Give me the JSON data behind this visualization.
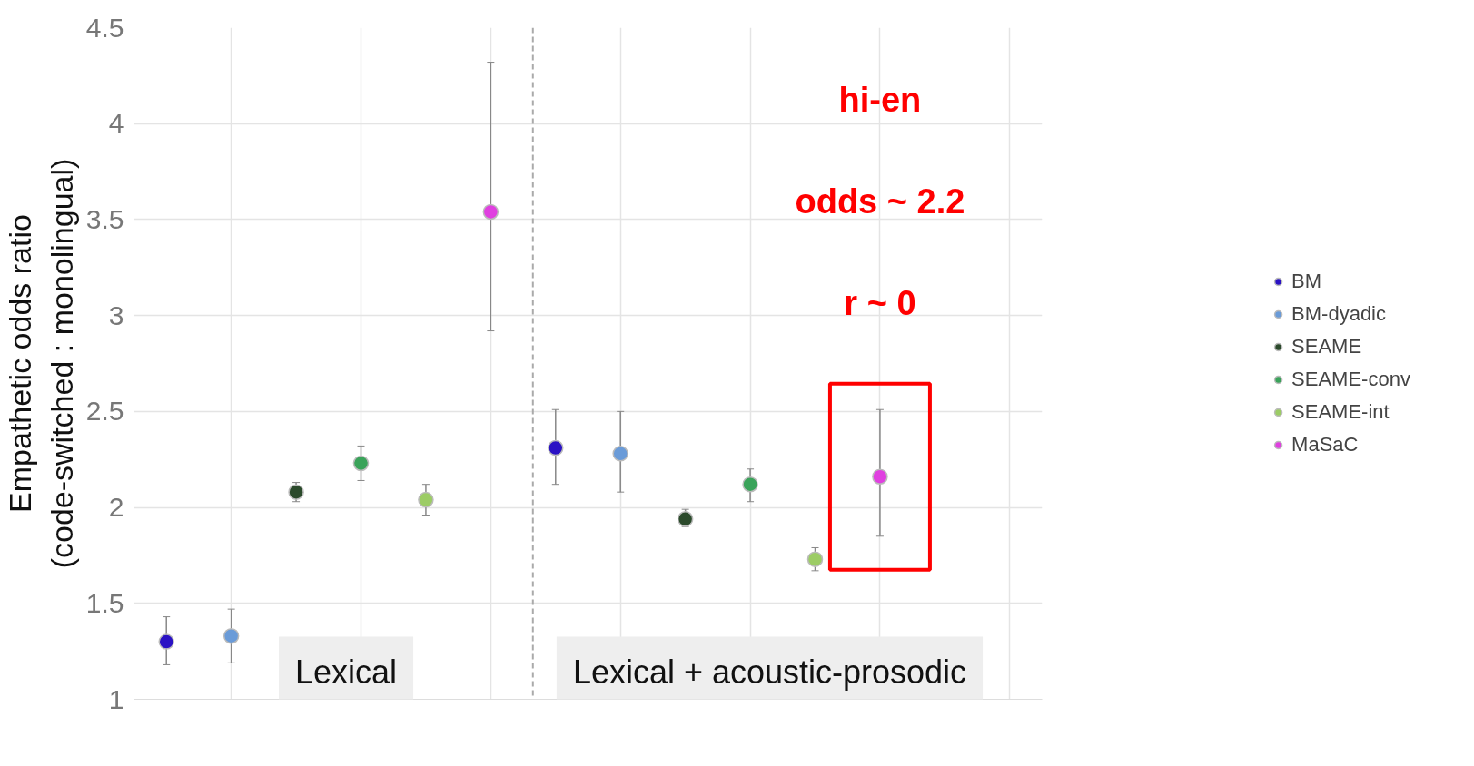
{
  "chart_data": {
    "type": "scatter",
    "ylabel": "Empathetic odds ratio\n(code-switched : monolingual)",
    "categories": [
      null,
      null,
      null,
      null,
      null,
      null,
      null,
      null,
      null,
      null,
      null,
      null,
      null,
      null
    ],
    "ylim": [
      1,
      4.5
    ],
    "yticks": [
      1,
      1.5,
      2,
      2.5,
      3,
      3.5,
      4,
      4.5
    ],
    "grid": true,
    "legend": "right",
    "marker": "circle",
    "series": [
      {
        "name": "BM",
        "color": "#2a12c4",
        "values": [
          1.3,
          null,
          null,
          null,
          null,
          null,
          2.31,
          null,
          null,
          null,
          null,
          null,
          null,
          null
        ],
        "errors": [
          [
            1.18,
            1.43
          ],
          null,
          null,
          null,
          null,
          null,
          [
            2.12,
            2.51
          ],
          null,
          null,
          null,
          null,
          null,
          null,
          null
        ]
      },
      {
        "name": "BM-dyadic",
        "color": "#6a9bd8",
        "values": [
          null,
          1.33,
          null,
          null,
          null,
          null,
          null,
          2.28,
          null,
          null,
          null,
          null,
          null,
          null
        ],
        "errors": [
          null,
          [
            1.19,
            1.47
          ],
          null,
          null,
          null,
          null,
          null,
          [
            2.08,
            2.5
          ],
          null,
          null,
          null,
          null,
          null,
          null
        ]
      },
      {
        "name": "SEAME",
        "color": "#2b4a2b",
        "values": [
          null,
          null,
          2.08,
          null,
          null,
          null,
          null,
          null,
          1.94,
          null,
          null,
          null,
          null,
          null
        ],
        "errors": [
          null,
          null,
          [
            2.03,
            2.13
          ],
          null,
          null,
          null,
          null,
          null,
          [
            1.9,
            1.99
          ],
          null,
          null,
          null,
          null,
          null
        ]
      },
      {
        "name": "SEAME-conv",
        "color": "#3aa35a",
        "values": [
          null,
          null,
          null,
          2.23,
          null,
          null,
          null,
          null,
          null,
          2.12,
          null,
          null,
          null,
          null
        ],
        "errors": [
          null,
          null,
          null,
          [
            2.14,
            2.32
          ],
          null,
          null,
          null,
          null,
          null,
          [
            2.03,
            2.2
          ],
          null,
          null,
          null,
          null
        ]
      },
      {
        "name": "SEAME-int",
        "color": "#9ccc65",
        "values": [
          null,
          null,
          null,
          null,
          2.04,
          null,
          null,
          null,
          null,
          null,
          1.73,
          null,
          null,
          null
        ],
        "errors": [
          null,
          null,
          null,
          null,
          [
            1.96,
            2.12
          ],
          null,
          null,
          null,
          null,
          null,
          [
            1.67,
            1.79
          ],
          null,
          null,
          null
        ]
      },
      {
        "name": "MaSaC",
        "color": "#e040e0",
        "values": [
          null,
          null,
          null,
          null,
          null,
          3.54,
          null,
          null,
          null,
          null,
          null,
          2.16,
          null,
          null
        ],
        "errors": [
          null,
          null,
          null,
          null,
          null,
          [
            2.92,
            4.32
          ],
          null,
          null,
          null,
          null,
          null,
          [
            1.85,
            2.51
          ],
          null,
          null
        ]
      }
    ],
    "annotations": [
      "Lexical",
      "Lexical + acoustic-prosodic",
      "hi-en",
      "odds ~ 2.2",
      "r ~ 0"
    ]
  }
}
